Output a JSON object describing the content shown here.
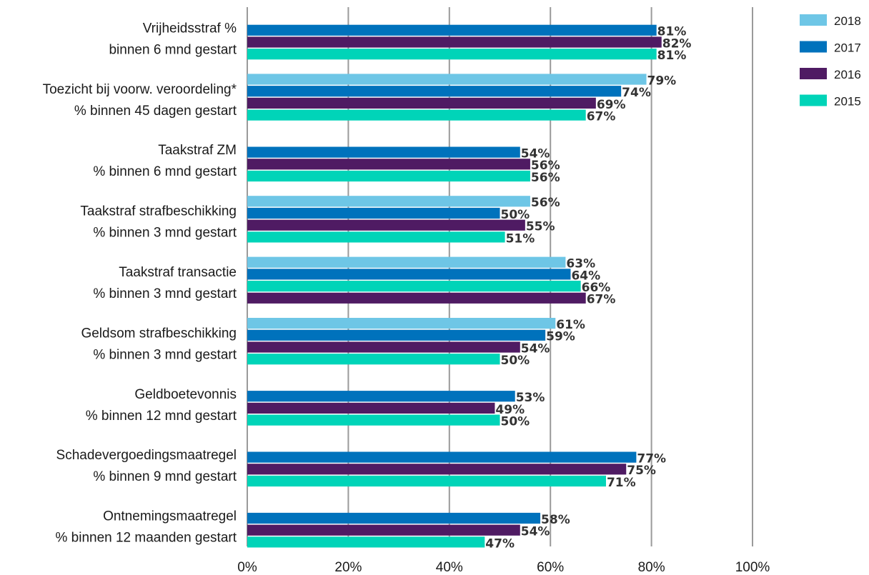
{
  "chart_data": {
    "type": "bar",
    "orientation": "horizontal",
    "title": "",
    "xlabel": "",
    "ylabel": "",
    "xlim": [
      0,
      100
    ],
    "x_ticks": [
      "0%",
      "20%",
      "40%",
      "60%",
      "80%",
      "100%"
    ],
    "grid": true,
    "legend_position": "top-right",
    "categories": [
      [
        "Vrijheidsstraf %",
        "binnen 6 mnd gestart"
      ],
      [
        "Toezicht bij voorw. veroordeling*",
        "% binnen 45 dagen gestart"
      ],
      [
        "Taakstraf ZM",
        "% binnen 6 mnd gestart"
      ],
      [
        "Taakstraf strafbeschikking",
        "% binnen 3 mnd gestart"
      ],
      [
        "Taakstraf transactie",
        "% binnen 3 mnd gestart"
      ],
      [
        "Geldsom strafbeschikking",
        "% binnen 3 mnd gestart"
      ],
      [
        "Geldboetevonnis",
        "% binnen 12 mnd gestart"
      ],
      [
        "Schadevergoedingsmaatregel",
        "% binnen 9 mnd gestart"
      ],
      [
        "Ontnemingsmaatregel",
        "% binnen 12 maanden gestart"
      ]
    ],
    "series": [
      {
        "name": "2018",
        "color": "#6ec6e6",
        "values": [
          null,
          79,
          null,
          56,
          63,
          61,
          null,
          null,
          null
        ]
      },
      {
        "name": "2017",
        "color": "#0072bc",
        "values": [
          81,
          74,
          54,
          50,
          64,
          59,
          53,
          77,
          58
        ]
      },
      {
        "name": "2016",
        "color": "#4f1b63",
        "values": [
          82,
          69,
          56,
          55,
          67,
          54,
          49,
          75,
          54
        ]
      },
      {
        "name": "2015",
        "color": "#00d4b8",
        "values": [
          81,
          67,
          56,
          51,
          66,
          50,
          50,
          71,
          47
        ]
      }
    ],
    "bar_order": [
      [
        "2018",
        "2017",
        "2016",
        "2015"
      ],
      [
        "2018",
        "2017",
        "2016",
        "2015"
      ],
      [
        "2018",
        "2017",
        "2016",
        "2015"
      ],
      [
        "2018",
        "2017",
        "2016",
        "2015"
      ],
      [
        "2018",
        "2017",
        "2015",
        "2016"
      ],
      [
        "2018",
        "2017",
        "2016",
        "2015"
      ],
      [
        "2018",
        "2017",
        "2016",
        "2015"
      ],
      [
        "2018",
        "2017",
        "2016",
        "2015"
      ],
      [
        "2018",
        "2017",
        "2016",
        "2015"
      ]
    ],
    "value_suffix": "%"
  }
}
